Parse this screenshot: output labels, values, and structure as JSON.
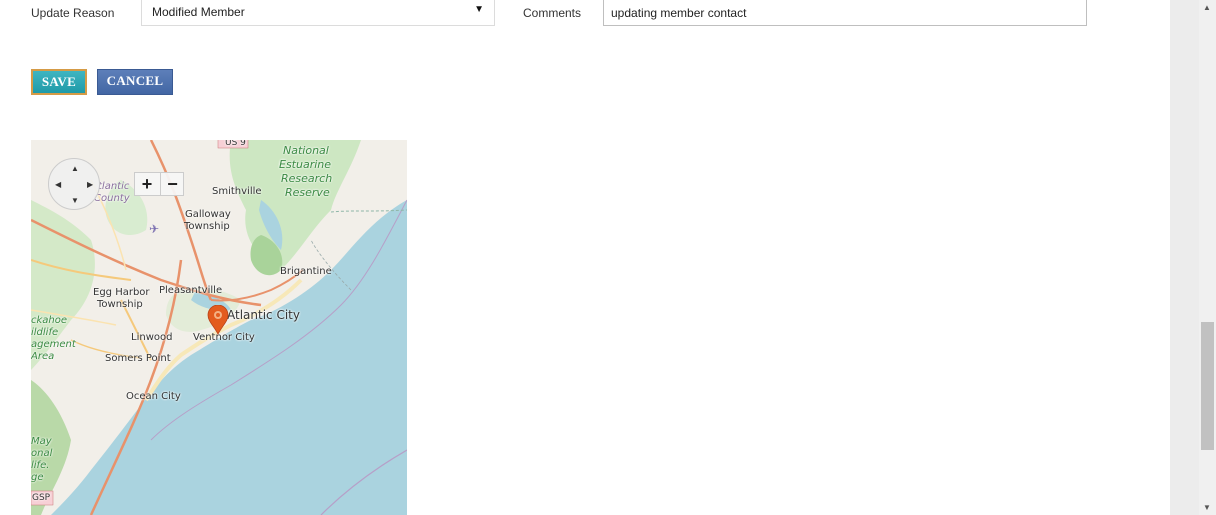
{
  "form": {
    "update_reason_label": "Update Reason",
    "update_reason_value": "Modified Member",
    "comments_label": "Comments",
    "comments_value": "updating member contact"
  },
  "buttons": {
    "save": "SAVE",
    "cancel": "CANCEL"
  },
  "map": {
    "zoom_in": "+",
    "zoom_out": "−",
    "marker_icon": "map-pin-icon",
    "labels": {
      "us9": "US 9",
      "national_estuarine": "National",
      "estuarine": "Estuarine",
      "research": "Research",
      "reserve": "Reserve",
      "atlantic_county_1": "tlantic",
      "atlantic_county_2": "County",
      "smithville": "Smithville",
      "galloway": "Galloway",
      "township_1": "Township",
      "brigantine": "Brigantine",
      "egg_harbor": "Egg Harbor",
      "township_2": "Township",
      "pleasantville": "Pleasantville",
      "atlantic_city": "Atlantic City",
      "ckahoe": "ckahoe",
      "ildlife": "ildlife",
      "agement": "agement",
      "area": "Area",
      "linwood": "Linwood",
      "ventnor": "Ventnor City",
      "somers_point": "Somers Point",
      "ocean_city": "Ocean City",
      "may": "May",
      "onal": "onal",
      "life": "life.",
      "ge": "ge",
      "gsp": "GSP"
    }
  },
  "colors": {
    "save_bg": "#2aa7b4",
    "cancel_bg": "#4a6fae",
    "water": "#aad3df",
    "land": "#f2efe9",
    "marker": "#e35b1e"
  }
}
